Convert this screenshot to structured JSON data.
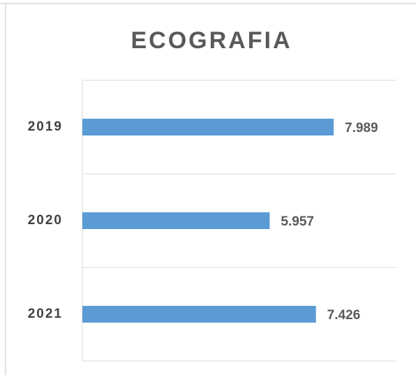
{
  "chart_data": {
    "type": "bar",
    "orientation": "horizontal",
    "title": "ECOGRAFIA",
    "categories": [
      "2019",
      "2020",
      "2021"
    ],
    "values": [
      7989,
      5957,
      7426
    ],
    "value_labels": [
      "7.989",
      "5.957",
      "7.426"
    ],
    "color": "#5b9bd5"
  }
}
